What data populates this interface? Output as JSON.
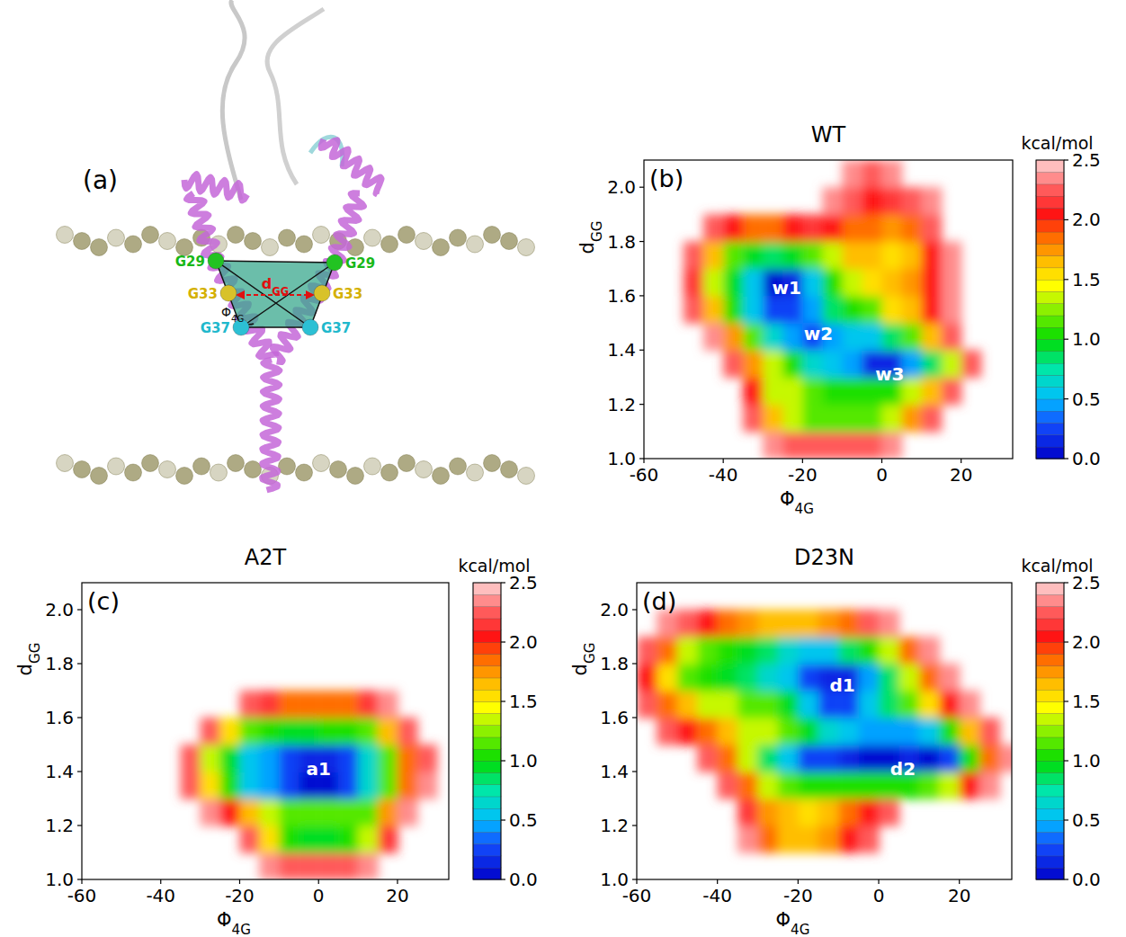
{
  "diagram": {
    "panel": "(a)",
    "labels_left": [
      "G29",
      "G33",
      "G37"
    ],
    "labels_right": [
      "G29",
      "G33",
      "G37"
    ],
    "distance_label": "dGG",
    "angle_label": "Φ4G"
  },
  "chart_data": [
    {
      "type": "heatmap",
      "title": "WT",
      "panel": "(b)",
      "x_label": "Φ4G",
      "y_label": "dGG",
      "x": [
        -57.5,
        -52.5,
        -47.5,
        -42.5,
        -37.5,
        -32.5,
        -27.5,
        -22.5,
        -17.5,
        -12.5,
        -7.5,
        -2.5,
        2.5,
        7.5,
        12.5,
        17.5,
        22.5,
        27.5,
        32.5
      ],
      "y": [
        1.05,
        1.15,
        1.25,
        1.35,
        1.45,
        1.55,
        1.65,
        1.75,
        1.85,
        1.95,
        2.05
      ],
      "values": [
        [
          null,
          null,
          null,
          null,
          null,
          null,
          2.4,
          2.2,
          2.2,
          2.2,
          2.3,
          2.3,
          2.4,
          null,
          null,
          null,
          null,
          null,
          null
        ],
        [
          null,
          null,
          null,
          null,
          null,
          2.3,
          1.6,
          1.3,
          1.2,
          1.1,
          1.1,
          1.2,
          1.3,
          1.7,
          2.3,
          null,
          null,
          null,
          null
        ],
        [
          null,
          null,
          null,
          null,
          null,
          2.0,
          1.3,
          1.3,
          1.2,
          1.0,
          1.0,
          1.0,
          1.0,
          1.3,
          1.6,
          2.2,
          null,
          null,
          null
        ],
        [
          null,
          null,
          null,
          null,
          2.3,
          1.7,
          1.3,
          1.0,
          0.7,
          0.6,
          0.4,
          0.1,
          0.1,
          0.4,
          0.8,
          1.3,
          2.2,
          null,
          null
        ],
        [
          null,
          null,
          null,
          2.4,
          1.7,
          1.1,
          0.7,
          0.4,
          0.2,
          0.4,
          0.6,
          0.6,
          0.8,
          1.2,
          1.6,
          2.2,
          null,
          null,
          null
        ],
        [
          null,
          null,
          2.3,
          1.6,
          1.0,
          0.6,
          0.2,
          0.2,
          0.4,
          0.8,
          1.0,
          1.2,
          1.5,
          1.6,
          2.0,
          2.4,
          null,
          null,
          null
        ],
        [
          null,
          null,
          2.1,
          1.3,
          0.9,
          0.5,
          0.05,
          0.1,
          0.6,
          1.0,
          1.3,
          1.5,
          1.6,
          1.7,
          2.0,
          2.4,
          null,
          null,
          null
        ],
        [
          null,
          null,
          2.3,
          1.6,
          1.1,
          0.9,
          0.8,
          0.9,
          1.2,
          1.4,
          1.6,
          1.6,
          1.5,
          1.6,
          2.0,
          2.4,
          null,
          null,
          null
        ],
        [
          null,
          null,
          null,
          2.3,
          2.0,
          1.9,
          1.9,
          2.0,
          2.1,
          2.0,
          1.9,
          1.8,
          1.7,
          1.9,
          2.2,
          null,
          null,
          null,
          null
        ],
        [
          null,
          null,
          null,
          null,
          null,
          null,
          null,
          null,
          null,
          2.4,
          2.2,
          2.0,
          2.1,
          2.2,
          2.4,
          null,
          null,
          null,
          null
        ],
        [
          null,
          null,
          null,
          null,
          null,
          null,
          null,
          null,
          null,
          null,
          2.4,
          2.3,
          2.4,
          null,
          null,
          null,
          null,
          null,
          null
        ]
      ],
      "xlim": [
        -60,
        33
      ],
      "ylim": [
        1.0,
        2.1
      ],
      "xticks": [
        -60,
        -40,
        -20,
        0,
        20
      ],
      "yticks": [
        {
          "value": 1,
          "label": "1.0"
        },
        1.2,
        1.4,
        1.6,
        1.8,
        {
          "value": 2,
          "label": "2.0"
        }
      ],
      "colorbar": {
        "label": "kcal/mol",
        "range": [
          0,
          2.5
        ],
        "ticks": [
          {
            "value": 0,
            "label": "0.0"
          },
          0.5,
          {
            "value": 1,
            "label": "1.0"
          },
          1.5,
          {
            "value": 2,
            "label": "2.0"
          },
          2.5
        ]
      },
      "annotations": [
        {
          "text": "w1",
          "x": -24,
          "y": 1.63
        },
        {
          "text": "w2",
          "x": -16,
          "y": 1.46
        },
        {
          "text": "w3",
          "x": 2,
          "y": 1.31
        }
      ]
    },
    {
      "type": "heatmap",
      "title": "A2T",
      "panel": "(c)",
      "x_label": "Φ4G",
      "y_label": "dGG",
      "x": [
        -57.5,
        -52.5,
        -47.5,
        -42.5,
        -37.5,
        -32.5,
        -27.5,
        -22.5,
        -17.5,
        -12.5,
        -7.5,
        -2.5,
        2.5,
        7.5,
        12.5,
        17.5,
        22.5,
        27.5,
        32.5
      ],
      "y": [
        1.05,
        1.15,
        1.25,
        1.35,
        1.45,
        1.55,
        1.65,
        1.75,
        1.85,
        1.95,
        2.05
      ],
      "values": [
        [
          null,
          null,
          null,
          null,
          null,
          null,
          null,
          null,
          null,
          2.4,
          2.3,
          2.2,
          2.2,
          2.3,
          2.4,
          null,
          null,
          null,
          null
        ],
        [
          null,
          null,
          null,
          null,
          null,
          null,
          null,
          null,
          2.2,
          1.5,
          1.0,
          0.9,
          0.9,
          1.0,
          1.4,
          2.1,
          null,
          null,
          null
        ],
        [
          null,
          null,
          null,
          null,
          null,
          null,
          2.4,
          2.0,
          1.6,
          1.3,
          1.2,
          1.1,
          1.1,
          1.2,
          1.2,
          1.7,
          2.4,
          null,
          null
        ],
        [
          null,
          null,
          null,
          null,
          null,
          2.3,
          1.5,
          1.0,
          0.6,
          0.4,
          0.2,
          0.05,
          0.05,
          0.3,
          0.7,
          1.2,
          1.8,
          2.4,
          null
        ],
        [
          null,
          null,
          null,
          null,
          null,
          2.2,
          1.4,
          0.9,
          0.5,
          0.4,
          0.2,
          0.1,
          0.1,
          0.3,
          0.7,
          1.1,
          1.8,
          2.3,
          null
        ],
        [
          null,
          null,
          null,
          null,
          null,
          null,
          2.2,
          1.5,
          1.2,
          1.0,
          0.9,
          0.9,
          1.0,
          1.0,
          1.2,
          1.6,
          2.2,
          null,
          null
        ],
        [
          null,
          null,
          null,
          null,
          null,
          null,
          null,
          null,
          2.3,
          2.1,
          1.9,
          1.8,
          1.8,
          1.9,
          2.1,
          2.4,
          null,
          null,
          null
        ],
        [
          null,
          null,
          null,
          null,
          null,
          null,
          null,
          null,
          null,
          null,
          null,
          null,
          null,
          null,
          null,
          null,
          null,
          null,
          null
        ],
        [
          null,
          null,
          null,
          null,
          null,
          null,
          null,
          null,
          null,
          null,
          null,
          null,
          null,
          null,
          null,
          null,
          null,
          null,
          null
        ],
        [
          null,
          null,
          null,
          null,
          null,
          null,
          null,
          null,
          null,
          null,
          null,
          null,
          null,
          null,
          null,
          null,
          null,
          null,
          null
        ],
        [
          null,
          null,
          null,
          null,
          null,
          null,
          null,
          null,
          null,
          null,
          null,
          null,
          null,
          null,
          null,
          null,
          null,
          null,
          null
        ]
      ],
      "xlim": [
        -60,
        33
      ],
      "ylim": [
        1.0,
        2.1
      ],
      "xticks": [
        -60,
        -40,
        -20,
        0,
        20
      ],
      "yticks": [
        {
          "value": 1,
          "label": "1.0"
        },
        1.2,
        1.4,
        1.6,
        1.8,
        {
          "value": 2,
          "label": "2.0"
        }
      ],
      "colorbar": {
        "label": "kcal/mol",
        "range": [
          0,
          2.5
        ],
        "ticks": [
          {
            "value": 0,
            "label": "0.0"
          },
          0.5,
          {
            "value": 1,
            "label": "1.0"
          },
          1.5,
          {
            "value": 2,
            "label": "2.0"
          },
          2.5
        ]
      },
      "annotations": [
        {
          "text": "a1",
          "x": 0,
          "y": 1.41
        }
      ]
    },
    {
      "type": "heatmap",
      "title": "D23N",
      "panel": "(d)",
      "x_label": "Φ4G",
      "y_label": "dGG",
      "x": [
        -57.5,
        -52.5,
        -47.5,
        -42.5,
        -37.5,
        -32.5,
        -27.5,
        -22.5,
        -17.5,
        -12.5,
        -7.5,
        -2.5,
        2.5,
        7.5,
        12.5,
        17.5,
        22.5,
        27.5,
        32.5
      ],
      "y": [
        1.05,
        1.15,
        1.25,
        1.35,
        1.45,
        1.55,
        1.65,
        1.75,
        1.85,
        1.95,
        2.05
      ],
      "values": [
        [
          null,
          null,
          null,
          null,
          null,
          null,
          null,
          null,
          null,
          null,
          null,
          null,
          null,
          null,
          null,
          null,
          null,
          null,
          null
        ],
        [
          null,
          null,
          null,
          null,
          null,
          2.4,
          1.9,
          1.6,
          1.6,
          1.7,
          2.0,
          2.3,
          null,
          null,
          null,
          null,
          null,
          null,
          null
        ],
        [
          null,
          null,
          null,
          null,
          null,
          2.1,
          1.7,
          1.6,
          1.5,
          1.6,
          1.8,
          2.0,
          2.3,
          null,
          null,
          null,
          null,
          null,
          null
        ],
        [
          null,
          null,
          null,
          null,
          2.3,
          1.8,
          1.3,
          1.1,
          1.0,
          1.0,
          1.0,
          1.0,
          1.0,
          1.0,
          1.1,
          1.4,
          2.0,
          2.4,
          null
        ],
        [
          null,
          null,
          null,
          2.3,
          1.9,
          1.3,
          0.8,
          0.5,
          0.3,
          0.2,
          0.1,
          0.05,
          0.05,
          0.1,
          0.0,
          0.3,
          1.0,
          1.8,
          2.4
        ],
        [
          null,
          2.3,
          2.0,
          1.8,
          1.6,
          1.4,
          1.3,
          1.1,
          0.9,
          0.7,
          0.5,
          0.4,
          0.4,
          0.4,
          0.6,
          1.0,
          1.6,
          2.2,
          null
        ],
        [
          2.3,
          1.9,
          1.6,
          1.4,
          1.3,
          1.2,
          1.2,
          0.9,
          0.5,
          0.3,
          0.3,
          0.5,
          0.8,
          1.1,
          1.5,
          2.0,
          2.4,
          null,
          null
        ],
        [
          2.0,
          1.5,
          1.2,
          1.0,
          0.9,
          0.8,
          0.7,
          0.5,
          0.3,
          0.1,
          0.1,
          0.4,
          0.8,
          1.3,
          1.9,
          2.4,
          null,
          null,
          null
        ],
        [
          2.3,
          1.8,
          1.4,
          1.1,
          1.0,
          0.9,
          0.8,
          0.7,
          0.6,
          0.6,
          0.8,
          1.0,
          1.4,
          1.9,
          2.4,
          null,
          null,
          null,
          null
        ],
        [
          null,
          2.4,
          2.2,
          2.0,
          1.8,
          1.7,
          1.6,
          1.6,
          1.6,
          1.7,
          1.9,
          2.2,
          2.4,
          null,
          null,
          null,
          null,
          null,
          null
        ],
        [
          null,
          null,
          null,
          null,
          null,
          null,
          null,
          null,
          null,
          null,
          null,
          null,
          null,
          null,
          null,
          null,
          null,
          null,
          null
        ]
      ],
      "xlim": [
        -60,
        33
      ],
      "ylim": [
        1.0,
        2.1
      ],
      "xticks": [
        -60,
        -40,
        -20,
        0,
        20
      ],
      "yticks": [
        {
          "value": 1,
          "label": "1.0"
        },
        1.2,
        1.4,
        1.6,
        1.8,
        {
          "value": 2,
          "label": "2.0"
        }
      ],
      "colorbar": {
        "label": "kcal/mol",
        "range": [
          0,
          2.5
        ],
        "ticks": [
          {
            "value": 0,
            "label": "0.0"
          },
          0.5,
          {
            "value": 1,
            "label": "1.0"
          },
          1.5,
          {
            "value": 2,
            "label": "2.0"
          },
          2.5
        ]
      },
      "annotations": [
        {
          "text": "d1",
          "x": -9,
          "y": 1.72
        },
        {
          "text": "d2",
          "x": 6,
          "y": 1.41
        }
      ]
    }
  ]
}
